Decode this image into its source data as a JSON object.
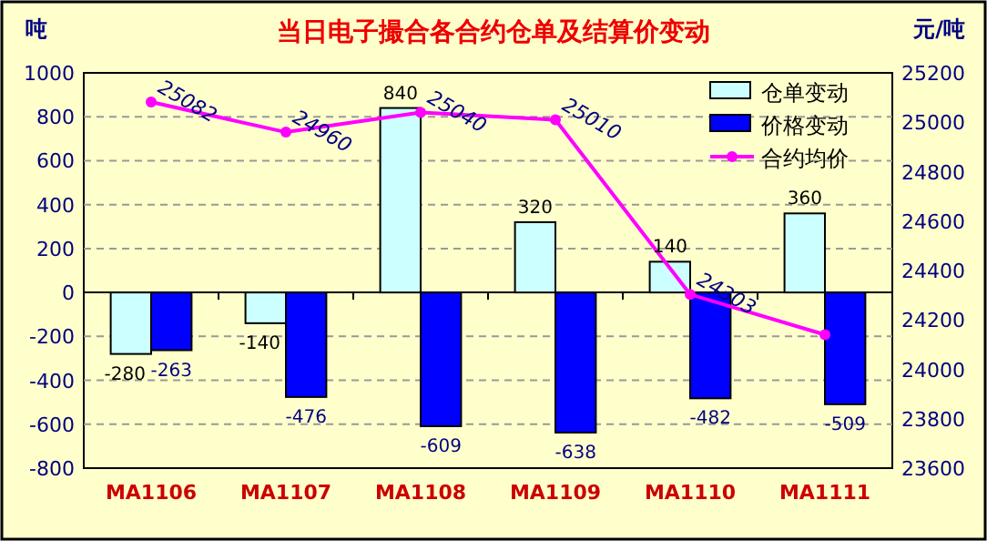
{
  "chart_data": {
    "type": "bar",
    "title": "当日电子撮合各合约仓单及结算价变动",
    "ylabel": "吨",
    "y2label": "元/吨",
    "categories": [
      "MA1106",
      "MA1107",
      "MA1108",
      "MA1109",
      "MA1110",
      "MA1111"
    ],
    "series": [
      {
        "name": "仓单变动",
        "color": "#ccffff",
        "values": [
          -280,
          -140,
          840,
          320,
          140,
          360
        ],
        "value_labels": [
          "-280",
          "-140",
          "840",
          "320",
          "140",
          "360"
        ]
      },
      {
        "name": "价格变动",
        "color": "#0000ff",
        "values": [
          -263,
          -476,
          -609,
          -638,
          -482,
          -509
        ],
        "value_labels": [
          "-263",
          "-476",
          "-609",
          "-638",
          "-482",
          "-509"
        ]
      },
      {
        "name": "合约均价",
        "type": "line",
        "axis": "y2",
        "color": "#ff00ff",
        "marker": "circle",
        "values": [
          25082,
          24960,
          25040,
          25010,
          24303,
          24140
        ],
        "value_labels": [
          "25082",
          "24960",
          "25040",
          "25010",
          "24303",
          null
        ]
      }
    ],
    "ylim": [
      -800,
      1000
    ],
    "yticks": [
      -800,
      -600,
      -400,
      -200,
      0,
      200,
      400,
      600,
      800,
      1000
    ],
    "y2lim": [
      23600,
      25200
    ],
    "y2ticks": [
      23600,
      23800,
      24000,
      24200,
      24400,
      24600,
      24800,
      25000,
      25200
    ],
    "grid": "y",
    "legend": "top right"
  }
}
